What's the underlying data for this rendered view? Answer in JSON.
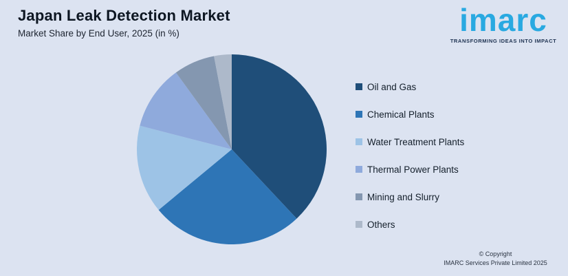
{
  "page": {
    "title": "Japan Leak Detection Market",
    "subtitle": "Market Share by End User, 2025 (in %)",
    "background_color": "#dce3f1"
  },
  "logo": {
    "brand": "imarc",
    "tagline": "TRANSFORMING IDEAS INTO IMPACT",
    "brand_color": "#29a9e1",
    "tagline_color": "#1d3150"
  },
  "footer": {
    "line1": "© Copyright",
    "line2": "IMARC Services Private Limited 2025"
  },
  "chart_data": {
    "type": "pie",
    "title": "Japan Leak Detection Market",
    "subtitle": "Market Share by End User, 2025 (in %)",
    "unit": "%",
    "start_angle_deg": 0,
    "direction": "clockwise",
    "legend_position": "right",
    "grid": false,
    "series": [
      {
        "name": "Oil and Gas",
        "value": 38,
        "color": "#1f4e79"
      },
      {
        "name": "Chemical Plants",
        "value": 26,
        "color": "#2e75b6"
      },
      {
        "name": "Water Treatment Plants",
        "value": 15,
        "color": "#9dc3e6"
      },
      {
        "name": "Thermal Power Plants",
        "value": 11,
        "color": "#8faadc"
      },
      {
        "name": "Mining and Slurry",
        "value": 7,
        "color": "#8497b0"
      },
      {
        "name": "Others",
        "value": 3,
        "color": "#adb9ca"
      }
    ]
  }
}
